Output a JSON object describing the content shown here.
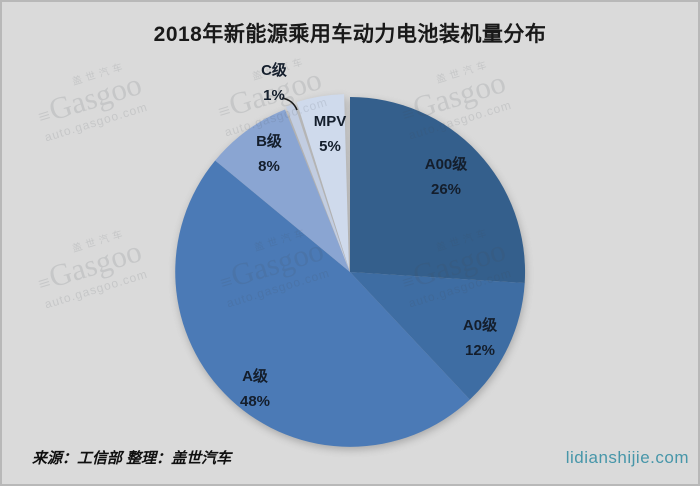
{
  "title": "2018年新能源乘用车动力电池装机量分布",
  "chart_data": {
    "type": "pie",
    "title": "2018年新能源乘用车动力电池装机量分布",
    "unit": "percent",
    "direction": "clockwise",
    "start_angle_deg": 0,
    "legend_position": "none",
    "label_format": "category name + percent, placed on/near slice",
    "slices": [
      {
        "label": "A00级",
        "value": 26,
        "color": "#345f8c"
      },
      {
        "label": "A0级",
        "value": 12,
        "color": "#3e6da3"
      },
      {
        "label": "A级",
        "value": 48,
        "color": "#4b7ab6"
      },
      {
        "label": "B级",
        "value": 8,
        "color": "#8aa5d2"
      },
      {
        "label": "C级",
        "value": 1,
        "color": "#c2cde1"
      },
      {
        "label": "MPV",
        "value": 5,
        "color": "#cfdaec"
      }
    ],
    "annotations": [
      {
        "type": "leader-line",
        "from_label": "C级 1%",
        "to_slice": "C级"
      }
    ]
  },
  "footer": {
    "source": "来源：工信部 整理：盖世汽车",
    "site": "lidianshijie.com",
    "site_color": "#4796a9"
  },
  "watermark": {
    "brand_cn": "盖世汽车",
    "logo_mark": "≡",
    "brand": "Gasgoo",
    "url": "auto.gasgoo.com"
  },
  "colors": {
    "background": "#dadada",
    "title_text": "#191919",
    "label_text": "#141e2c"
  }
}
